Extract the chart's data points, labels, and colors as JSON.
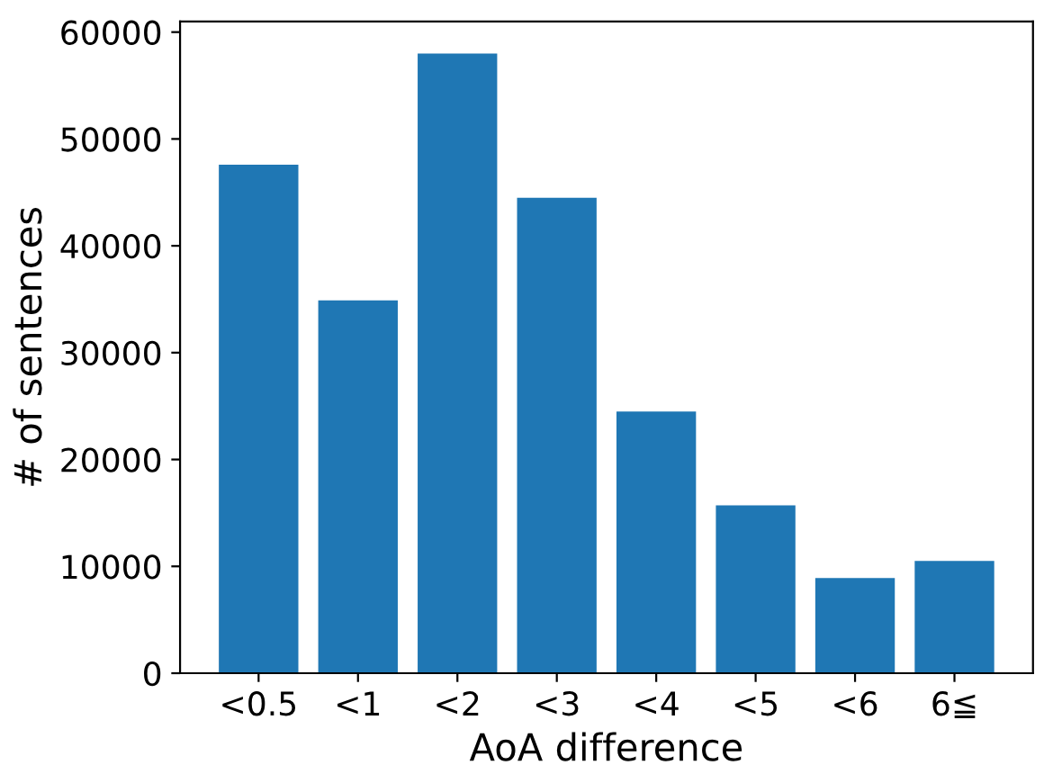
{
  "chart_data": {
    "type": "bar",
    "xlabel": "AoA difference",
    "ylabel": "# of sentences",
    "categories": [
      "<0.5",
      "<1",
      "<2",
      "<3",
      "<4",
      "<5",
      "<6",
      "6≦"
    ],
    "values": [
      47600,
      34900,
      58000,
      44500,
      24500,
      15700,
      8900,
      10500
    ],
    "color": "#1f77b4",
    "ylim": [
      0,
      61000
    ],
    "yticks": [
      0,
      10000,
      20000,
      30000,
      40000,
      50000,
      60000
    ],
    "grid": false
  }
}
